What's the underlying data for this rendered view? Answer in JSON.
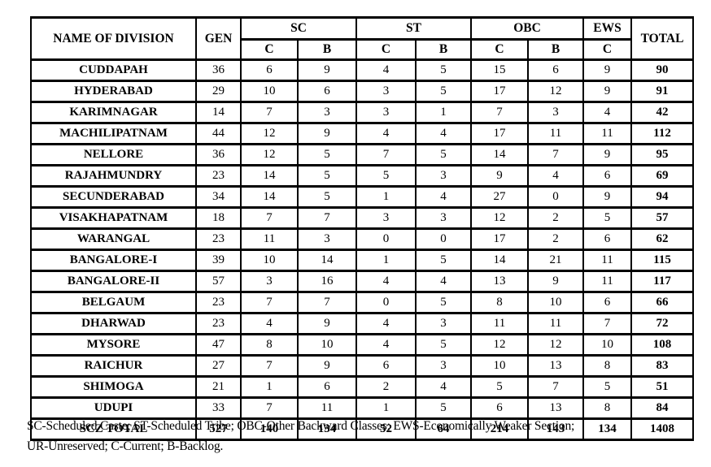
{
  "colors": {
    "background": "#ffffff",
    "border": "#000000",
    "text": "#000000"
  },
  "table": {
    "header": {
      "division_col": "NAME OF DIVISION",
      "gen_col": "GEN",
      "groups": [
        {
          "label": "SC",
          "subcols": [
            "C",
            "B"
          ]
        },
        {
          "label": "ST",
          "subcols": [
            "C",
            "B"
          ]
        },
        {
          "label": "OBC",
          "subcols": [
            "C",
            "B"
          ]
        },
        {
          "label": "EWS",
          "subcols": [
            "C"
          ]
        }
      ],
      "total_col": "TOTAL"
    },
    "rows": [
      {
        "name": "CUDDAPAH",
        "values": [
          "36",
          "6",
          "9",
          "4",
          "5",
          "15",
          "6",
          "9",
          "90"
        ]
      },
      {
        "name": "HYDERABAD",
        "values": [
          "29",
          "10",
          "6",
          "3",
          "5",
          "17",
          "12",
          "9",
          "91"
        ]
      },
      {
        "name": "KARIMNAGAR",
        "values": [
          "14",
          "7",
          "3",
          "3",
          "1",
          "7",
          "3",
          "4",
          "42"
        ]
      },
      {
        "name": "MACHILIPATNAM",
        "values": [
          "44",
          "12",
          "9",
          "4",
          "4",
          "17",
          "11",
          "11",
          "112"
        ]
      },
      {
        "name": "NELLORE",
        "values": [
          "36",
          "12",
          "5",
          "7",
          "5",
          "14",
          "7",
          "9",
          "95"
        ]
      },
      {
        "name": "RAJAHMUNDRY",
        "values": [
          "23",
          "14",
          "5",
          "5",
          "3",
          "9",
          "4",
          "6",
          "69"
        ]
      },
      {
        "name": "SECUNDERABAD",
        "values": [
          "34",
          "14",
          "5",
          "1",
          "4",
          "27",
          "0",
          "9",
          "94"
        ]
      },
      {
        "name": "VISAKHAPATNAM",
        "values": [
          "18",
          "7",
          "7",
          "3",
          "3",
          "12",
          "2",
          "5",
          "57"
        ]
      },
      {
        "name": "WARANGAL",
        "values": [
          "23",
          "11",
          "3",
          "0",
          "0",
          "17",
          "2",
          "6",
          "62"
        ]
      },
      {
        "name": "BANGALORE-I",
        "values": [
          "39",
          "10",
          "14",
          "1",
          "5",
          "14",
          "21",
          "11",
          "115"
        ]
      },
      {
        "name": "BANGALORE-II",
        "values": [
          "57",
          "3",
          "16",
          "4",
          "4",
          "13",
          "9",
          "11",
          "117"
        ]
      },
      {
        "name": "BELGAUM",
        "values": [
          "23",
          "7",
          "7",
          "0",
          "5",
          "8",
          "10",
          "6",
          "66"
        ]
      },
      {
        "name": "DHARWAD",
        "values": [
          "23",
          "4",
          "9",
          "4",
          "3",
          "11",
          "11",
          "7",
          "72"
        ]
      },
      {
        "name": "MYSORE",
        "values": [
          "47",
          "8",
          "10",
          "4",
          "5",
          "12",
          "12",
          "10",
          "108"
        ]
      },
      {
        "name": "RAICHUR",
        "values": [
          "27",
          "7",
          "9",
          "6",
          "3",
          "10",
          "13",
          "8",
          "83"
        ]
      },
      {
        "name": "SHIMOGA",
        "values": [
          "21",
          "1",
          "6",
          "2",
          "4",
          "5",
          "7",
          "5",
          "51"
        ]
      },
      {
        "name": "UDUPI",
        "values": [
          "33",
          "7",
          "11",
          "1",
          "5",
          "6",
          "13",
          "8",
          "84"
        ]
      }
    ],
    "total_row": {
      "name": "SCZ TOTAL",
      "values": [
        "527",
        "140",
        "134",
        "52",
        "64",
        "214",
        "143",
        "134",
        "1408"
      ]
    }
  },
  "footnote": {
    "line1": "SC-Scheduled Caste; ST-Scheduled Tribe; OBC-Other Backward Classes; EWS-Economically Weaker Section;",
    "line2": "UR-Unreserved; C-Current; B-Backlog."
  }
}
